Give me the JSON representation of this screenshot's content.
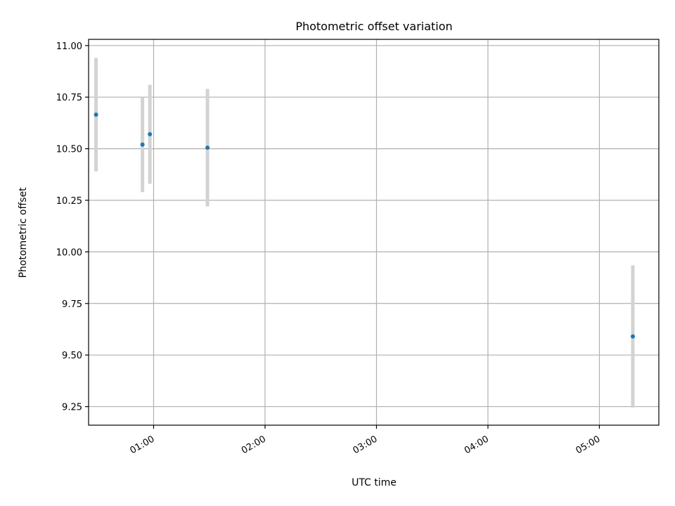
{
  "chart_data": {
    "type": "scatter",
    "title": "Photometric offset variation",
    "xlabel": "UTC time",
    "ylabel": "Photometric offset",
    "x_tick_labels": [
      "01:00",
      "02:00",
      "03:00",
      "04:00",
      "05:00"
    ],
    "y_tick_labels": [
      "9.25",
      "9.50",
      "9.75",
      "10.00",
      "10.25",
      "10.50",
      "10.75",
      "11.00"
    ],
    "y_ticks": [
      9.25,
      9.5,
      9.75,
      10.0,
      10.25,
      10.5,
      10.75,
      11.0
    ],
    "x_ticks": [
      "01:00",
      "02:00",
      "03:00",
      "04:00",
      "05:00"
    ],
    "xlim": [
      "00:25",
      "05:32"
    ],
    "ylim": [
      9.16,
      11.03
    ],
    "grid": true,
    "point_color": "#1f77b4",
    "errorbar_color": "#d3d3d3",
    "points": [
      {
        "x": "00:29",
        "y": 10.665,
        "err": 0.275
      },
      {
        "x": "00:54",
        "y": 10.52,
        "err": 0.23
      },
      {
        "x": "00:58",
        "y": 10.57,
        "err": 0.24
      },
      {
        "x": "01:29",
        "y": 10.505,
        "err": 0.285
      },
      {
        "x": "05:18",
        "y": 9.59,
        "err": 0.345
      }
    ]
  }
}
